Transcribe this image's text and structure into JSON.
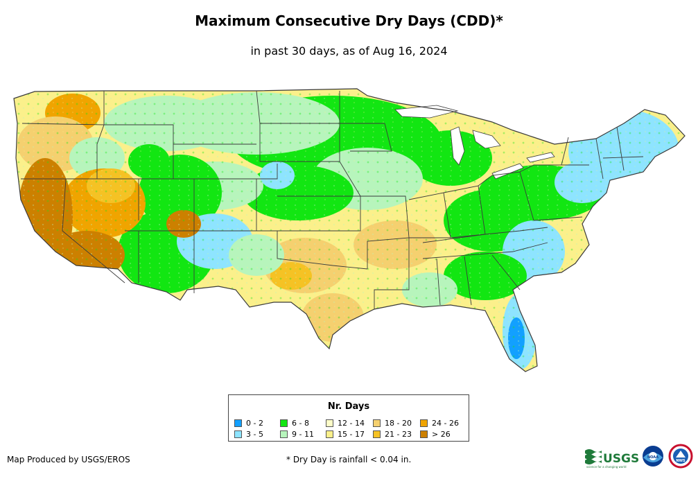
{
  "title": "Maximum Consecutive Dry Days (CDD)*",
  "subtitle": "in past 30 days, as of Aug 16, 2024",
  "legend": {
    "title": "Nr. Days",
    "items": [
      {
        "label": "0 - 2",
        "color": "#12a0ff"
      },
      {
        "label": "3 - 5",
        "color": "#8ee4ff"
      },
      {
        "label": "6 - 8",
        "color": "#12e612"
      },
      {
        "label": "9 - 11",
        "color": "#b7f5bc"
      },
      {
        "label": "12 - 14",
        "color": "#fdfdc8"
      },
      {
        "label": "15 - 17",
        "color": "#fbf08b"
      },
      {
        "label": "18 - 20",
        "color": "#f5d06f"
      },
      {
        "label": "21 - 23",
        "color": "#f5c224"
      },
      {
        "label": "24 - 26",
        "color": "#f0a400"
      },
      {
        "label": "> 26",
        "color": "#cc8000"
      }
    ]
  },
  "credit": "Map Produced by USGS/EROS",
  "footnote": "* Dry Day is rainfall < 0.04 in.",
  "logos": {
    "usgs": "USGS",
    "usgs_tagline": "science for a changing world",
    "noaa": "NOAA",
    "nws": "NWS"
  },
  "colors": {
    "state_border": "#3a3a3a"
  }
}
